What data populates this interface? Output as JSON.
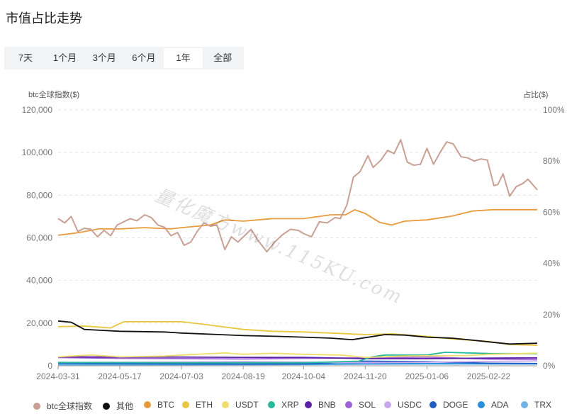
{
  "page": {
    "title": "市值占比走势"
  },
  "tabs": [
    {
      "label": "7天",
      "active": false
    },
    {
      "label": "1个月",
      "active": false
    },
    {
      "label": "3个月",
      "active": false
    },
    {
      "label": "6个月",
      "active": false
    },
    {
      "label": "1年",
      "active": true
    },
    {
      "label": "全部",
      "active": false
    }
  ],
  "watermark": "量化魔方www.115KU.com",
  "chart_data": {
    "type": "line",
    "left_axis": {
      "title": "btc全球指数($)",
      "min": 0,
      "max": 120000,
      "ticks": [
        "120,000",
        "100,000",
        "80,000",
        "60,000",
        "40,000",
        "20,000",
        "0"
      ]
    },
    "right_axis": {
      "title": "占比($)",
      "min": 0,
      "max": 100,
      "ticks": [
        "100%",
        "80%",
        "60%",
        "40%",
        "20%",
        "0%"
      ]
    },
    "x_ticks": [
      "2024-03-31",
      "2024-05-17",
      "2024-07-03",
      "2024-08-19",
      "2024-10-04",
      "2024-11-20",
      "2025-01-06",
      "2025-02-22"
    ],
    "x_range": [
      "2024-03-31",
      "2025-03-31"
    ],
    "grid": true,
    "legend_position": "bottom",
    "series": [
      {
        "name": "btc全球指数",
        "axis": "left",
        "color": "#c9a094",
        "points": [
          [
            "2024-03-31",
            69000
          ],
          [
            "2024-04-05",
            67000
          ],
          [
            "2024-04-10",
            70000
          ],
          [
            "2024-04-15",
            63000
          ],
          [
            "2024-04-20",
            64500
          ],
          [
            "2024-04-25",
            64000
          ],
          [
            "2024-04-30",
            60500
          ],
          [
            "2024-05-05",
            63500
          ],
          [
            "2024-05-10",
            61000
          ],
          [
            "2024-05-15",
            66000
          ],
          [
            "2024-05-20",
            67500
          ],
          [
            "2024-05-25",
            69000
          ],
          [
            "2024-05-30",
            68000
          ],
          [
            "2024-06-05",
            70800
          ],
          [
            "2024-06-10",
            69500
          ],
          [
            "2024-06-15",
            66000
          ],
          [
            "2024-06-20",
            65000
          ],
          [
            "2024-06-25",
            61000
          ],
          [
            "2024-06-30",
            62500
          ],
          [
            "2024-07-05",
            56500
          ],
          [
            "2024-07-10",
            58000
          ],
          [
            "2024-07-15",
            63000
          ],
          [
            "2024-07-20",
            67000
          ],
          [
            "2024-07-25",
            65500
          ],
          [
            "2024-07-30",
            66000
          ],
          [
            "2024-08-05",
            54500
          ],
          [
            "2024-08-10",
            60500
          ],
          [
            "2024-08-15",
            58000
          ],
          [
            "2024-08-20",
            61000
          ],
          [
            "2024-08-25",
            64000
          ],
          [
            "2024-08-30",
            59000
          ],
          [
            "2024-09-06",
            53500
          ],
          [
            "2024-09-12",
            58000
          ],
          [
            "2024-09-18",
            61500
          ],
          [
            "2024-09-24",
            64000
          ],
          [
            "2024-09-30",
            63500
          ],
          [
            "2024-10-04",
            62000
          ],
          [
            "2024-10-10",
            60500
          ],
          [
            "2024-10-16",
            67500
          ],
          [
            "2024-10-22",
            67000
          ],
          [
            "2024-10-28",
            69500
          ],
          [
            "2024-11-01",
            69000
          ],
          [
            "2024-11-06",
            75500
          ],
          [
            "2024-11-11",
            88500
          ],
          [
            "2024-11-16",
            91000
          ],
          [
            "2024-11-22",
            98500
          ],
          [
            "2024-11-26",
            93000
          ],
          [
            "2024-12-02",
            96500
          ],
          [
            "2024-12-07",
            101000
          ],
          [
            "2024-12-12",
            99500
          ],
          [
            "2024-12-17",
            106000
          ],
          [
            "2024-12-22",
            95500
          ],
          [
            "2024-12-27",
            94000
          ],
          [
            "2025-01-01",
            94500
          ],
          [
            "2025-01-06",
            102000
          ],
          [
            "2025-01-11",
            94500
          ],
          [
            "2025-01-16",
            100000
          ],
          [
            "2025-01-21",
            105000
          ],
          [
            "2025-01-26",
            104000
          ],
          [
            "2025-02-01",
            98000
          ],
          [
            "2025-02-06",
            97500
          ],
          [
            "2025-02-11",
            96000
          ],
          [
            "2025-02-16",
            97000
          ],
          [
            "2025-02-21",
            96500
          ],
          [
            "2025-02-26",
            84500
          ],
          [
            "2025-03-01",
            85000
          ],
          [
            "2025-03-05",
            90000
          ],
          [
            "2025-03-10",
            79500
          ],
          [
            "2025-03-15",
            84000
          ],
          [
            "2025-03-20",
            85500
          ],
          [
            "2025-03-24",
            87500
          ],
          [
            "2025-03-31",
            82500
          ]
        ]
      },
      {
        "name": "其他",
        "axis": "right",
        "color": "#111111",
        "points": [
          [
            "2024-03-31",
            17.5
          ],
          [
            "2024-04-10",
            17
          ],
          [
            "2024-04-20",
            14.2
          ],
          [
            "2024-05-17",
            13.5
          ],
          [
            "2024-06-20",
            13.2
          ],
          [
            "2024-07-03",
            12.8
          ],
          [
            "2024-08-01",
            12.2
          ],
          [
            "2024-08-19",
            11.8
          ],
          [
            "2024-09-15",
            11.5
          ],
          [
            "2024-10-04",
            11.2
          ],
          [
            "2024-10-25",
            10.8
          ],
          [
            "2024-11-10",
            10.2
          ],
          [
            "2024-11-20",
            11
          ],
          [
            "2024-12-05",
            12.2
          ],
          [
            "2024-12-20",
            12
          ],
          [
            "2025-01-06",
            11.2
          ],
          [
            "2025-01-25",
            10.8
          ],
          [
            "2025-02-10",
            10
          ],
          [
            "2025-02-25",
            9.2
          ],
          [
            "2025-03-10",
            8.5
          ],
          [
            "2025-03-31",
            8.8
          ]
        ]
      },
      {
        "name": "BTC",
        "axis": "right",
        "color": "#e89a3c",
        "points": [
          [
            "2024-03-31",
            51
          ],
          [
            "2024-04-15",
            52
          ],
          [
            "2024-05-01",
            53.5
          ],
          [
            "2024-05-17",
            53.5
          ],
          [
            "2024-06-05",
            54
          ],
          [
            "2024-06-25",
            53.5
          ],
          [
            "2024-07-03",
            54
          ],
          [
            "2024-07-25",
            55
          ],
          [
            "2024-08-05",
            57
          ],
          [
            "2024-08-19",
            56.5
          ],
          [
            "2024-09-10",
            57.5
          ],
          [
            "2024-09-25",
            57.5
          ],
          [
            "2024-10-04",
            57.5
          ],
          [
            "2024-10-25",
            59
          ],
          [
            "2024-11-05",
            59
          ],
          [
            "2024-11-12",
            61
          ],
          [
            "2024-11-20",
            59.5
          ],
          [
            "2024-12-01",
            56
          ],
          [
            "2024-12-10",
            55
          ],
          [
            "2024-12-20",
            56.5
          ],
          [
            "2025-01-06",
            57
          ],
          [
            "2025-01-25",
            58.5
          ],
          [
            "2025-02-10",
            60.5
          ],
          [
            "2025-02-25",
            61
          ],
          [
            "2025-03-10",
            61
          ],
          [
            "2025-03-31",
            61
          ]
        ]
      },
      {
        "name": "ETH",
        "axis": "right",
        "color": "#e8c840",
        "points": [
          [
            "2024-03-31",
            15.3
          ],
          [
            "2024-04-20",
            15.5
          ],
          [
            "2024-05-10",
            14.8
          ],
          [
            "2024-05-20",
            17.2
          ],
          [
            "2024-06-10",
            17.2
          ],
          [
            "2024-07-03",
            17.2
          ],
          [
            "2024-07-20",
            16.2
          ],
          [
            "2024-08-19",
            14.2
          ],
          [
            "2024-09-10",
            13.5
          ],
          [
            "2024-10-04",
            13.2
          ],
          [
            "2024-10-25",
            12.8
          ],
          [
            "2024-11-20",
            12.2
          ],
          [
            "2024-12-10",
            12.5
          ],
          [
            "2025-01-06",
            11.5
          ],
          [
            "2025-01-25",
            10.5
          ],
          [
            "2025-02-22",
            9.5
          ],
          [
            "2025-03-10",
            8.3
          ],
          [
            "2025-03-31",
            8.0
          ]
        ]
      },
      {
        "name": "USDT",
        "axis": "right",
        "color": "#f0de6a",
        "points": [
          [
            "2024-03-31",
            3.5
          ],
          [
            "2024-04-25",
            4.2
          ],
          [
            "2024-05-17",
            3.5
          ],
          [
            "2024-06-20",
            3.8
          ],
          [
            "2024-07-03",
            4.2
          ],
          [
            "2024-08-05",
            5
          ],
          [
            "2024-08-19",
            4.5
          ],
          [
            "2024-09-10",
            4.9
          ],
          [
            "2024-10-04",
            4.5
          ],
          [
            "2024-11-01",
            4.2
          ],
          [
            "2024-11-20",
            3.3
          ],
          [
            "2024-12-20",
            3.8
          ],
          [
            "2025-01-06",
            3.9
          ],
          [
            "2025-02-05",
            4
          ],
          [
            "2025-02-22",
            4.5
          ],
          [
            "2025-03-31",
            4.9
          ]
        ]
      },
      {
        "name": "XRP",
        "axis": "right",
        "color": "#26b99a",
        "points": [
          [
            "2024-03-31",
            1.3
          ],
          [
            "2024-07-03",
            1.2
          ],
          [
            "2024-10-04",
            1.2
          ],
          [
            "2024-11-15",
            1.8
          ],
          [
            "2024-11-25",
            3.5
          ],
          [
            "2024-12-05",
            4.2
          ],
          [
            "2025-01-06",
            4.2
          ],
          [
            "2025-01-20",
            5.3
          ],
          [
            "2025-02-22",
            4.8
          ],
          [
            "2025-03-31",
            4.7
          ]
        ]
      },
      {
        "name": "BNB",
        "axis": "right",
        "color": "#5b21a8",
        "points": [
          [
            "2024-03-31",
            3.5
          ],
          [
            "2024-05-17",
            3.4
          ],
          [
            "2024-07-03",
            3.4
          ],
          [
            "2024-08-19",
            3.3
          ],
          [
            "2024-10-04",
            3.3
          ],
          [
            "2024-11-20",
            2.8
          ],
          [
            "2025-01-06",
            2.8
          ],
          [
            "2025-02-22",
            3
          ],
          [
            "2025-03-31",
            3.1
          ]
        ]
      },
      {
        "name": "SOL",
        "axis": "right",
        "color": "#9d63d6",
        "points": [
          [
            "2024-03-31",
            3.2
          ],
          [
            "2024-05-17",
            2.9
          ],
          [
            "2024-07-03",
            2.8
          ],
          [
            "2024-08-19",
            2.7
          ],
          [
            "2024-10-04",
            2.9
          ],
          [
            "2024-11-20",
            3.1
          ],
          [
            "2025-01-06",
            3.4
          ],
          [
            "2025-02-22",
            2.6
          ],
          [
            "2025-03-31",
            2.5
          ]
        ]
      },
      {
        "name": "USDC",
        "axis": "right",
        "color": "#c9a7ee",
        "points": [
          [
            "2024-03-31",
            1.3
          ],
          [
            "2024-06-01",
            1.4
          ],
          [
            "2024-08-19",
            1.6
          ],
          [
            "2024-10-04",
            1.5
          ],
          [
            "2024-11-20",
            1.2
          ],
          [
            "2025-01-06",
            1.4
          ],
          [
            "2025-02-22",
            1.7
          ],
          [
            "2025-03-31",
            1.9
          ]
        ]
      },
      {
        "name": "DOGE",
        "axis": "right",
        "color": "#1f5fc5",
        "points": [
          [
            "2024-03-31",
            1.1
          ],
          [
            "2024-05-17",
            1
          ],
          [
            "2024-07-03",
            0.8
          ],
          [
            "2024-08-19",
            0.7
          ],
          [
            "2024-10-04",
            0.8
          ],
          [
            "2024-11-20",
            1.8
          ],
          [
            "2025-01-06",
            1.6
          ],
          [
            "2025-02-22",
            1.0
          ],
          [
            "2025-03-31",
            0.9
          ]
        ]
      },
      {
        "name": "ADA",
        "axis": "right",
        "color": "#2a8fd9",
        "points": [
          [
            "2024-03-31",
            0.8
          ],
          [
            "2024-05-17",
            0.7
          ],
          [
            "2024-07-03",
            0.6
          ],
          [
            "2024-08-19",
            0.6
          ],
          [
            "2024-10-04",
            0.6
          ],
          [
            "2024-11-20",
            0.9
          ],
          [
            "2025-01-06",
            0.9
          ],
          [
            "2025-02-22",
            0.8
          ],
          [
            "2025-03-31",
            0.8
          ]
        ]
      },
      {
        "name": "TRX",
        "axis": "right",
        "color": "#6fb3e8",
        "points": [
          [
            "2024-03-31",
            0.4
          ],
          [
            "2024-07-03",
            0.4
          ],
          [
            "2024-10-04",
            0.5
          ],
          [
            "2024-11-20",
            0.6
          ],
          [
            "2025-01-06",
            0.7
          ],
          [
            "2025-03-31",
            0.7
          ]
        ]
      }
    ]
  }
}
